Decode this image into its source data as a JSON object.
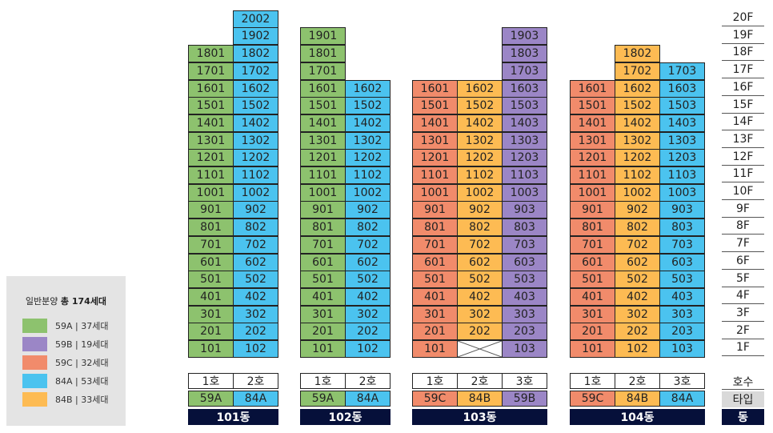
{
  "legend": {
    "prefix": "일반분양",
    "total": "총 174세대",
    "items": [
      {
        "label": "59A | 37세대",
        "color": "#8dc26e"
      },
      {
        "label": "59B | 19세대",
        "color": "#9b86c6"
      },
      {
        "label": "59C | 32세대",
        "color": "#f18b6b"
      },
      {
        "label": "84A | 53세대",
        "color": "#4bc3ef"
      },
      {
        "label": "84B | 33세대",
        "color": "#fdbb53"
      }
    ]
  },
  "colors": {
    "59A": "#8dc26e",
    "59B": "#9b86c6",
    "59C": "#f18b6b",
    "84A": "#4bc3ef",
    "84B": "#fdbb53",
    "header_bar": "#06103a",
    "type_label_bg": "#d9d9d9"
  },
  "buildings": [
    {
      "name": "101동",
      "columns": [
        {
          "ho": "1호",
          "type": "59A",
          "top": 18
        },
        {
          "ho": "2호",
          "type": "84A",
          "top": 20
        }
      ]
    },
    {
      "name": "102동",
      "columns": [
        {
          "ho": "1호",
          "type": "59A",
          "top": 19
        },
        {
          "ho": "2호",
          "type": "84A",
          "top": 16
        }
      ]
    },
    {
      "name": "103동",
      "columns": [
        {
          "ho": "1호",
          "type": "59C",
          "top": 16,
          "empty": []
        },
        {
          "ho": "2호",
          "type": "84B",
          "top": 16,
          "empty": [
            1
          ]
        },
        {
          "ho": "3호",
          "type": "59B",
          "top": 19
        }
      ]
    },
    {
      "name": "104동",
      "columns": [
        {
          "ho": "1호",
          "type": "59C",
          "top": 16
        },
        {
          "ho": "2호",
          "type": "84B",
          "top": 18
        },
        {
          "ho": "3호",
          "type": "84A",
          "top": 17
        }
      ]
    }
  ],
  "floor_labels": [
    "20F",
    "19F",
    "18F",
    "17F",
    "16F",
    "15F",
    "14F",
    "13F",
    "12F",
    "11F",
    "10F",
    "9F",
    "8F",
    "7F",
    "6F",
    "5F",
    "4F",
    "3F",
    "2F",
    "1F"
  ],
  "row_labels": {
    "ho": "호수",
    "type": "타입",
    "dong": "동"
  }
}
